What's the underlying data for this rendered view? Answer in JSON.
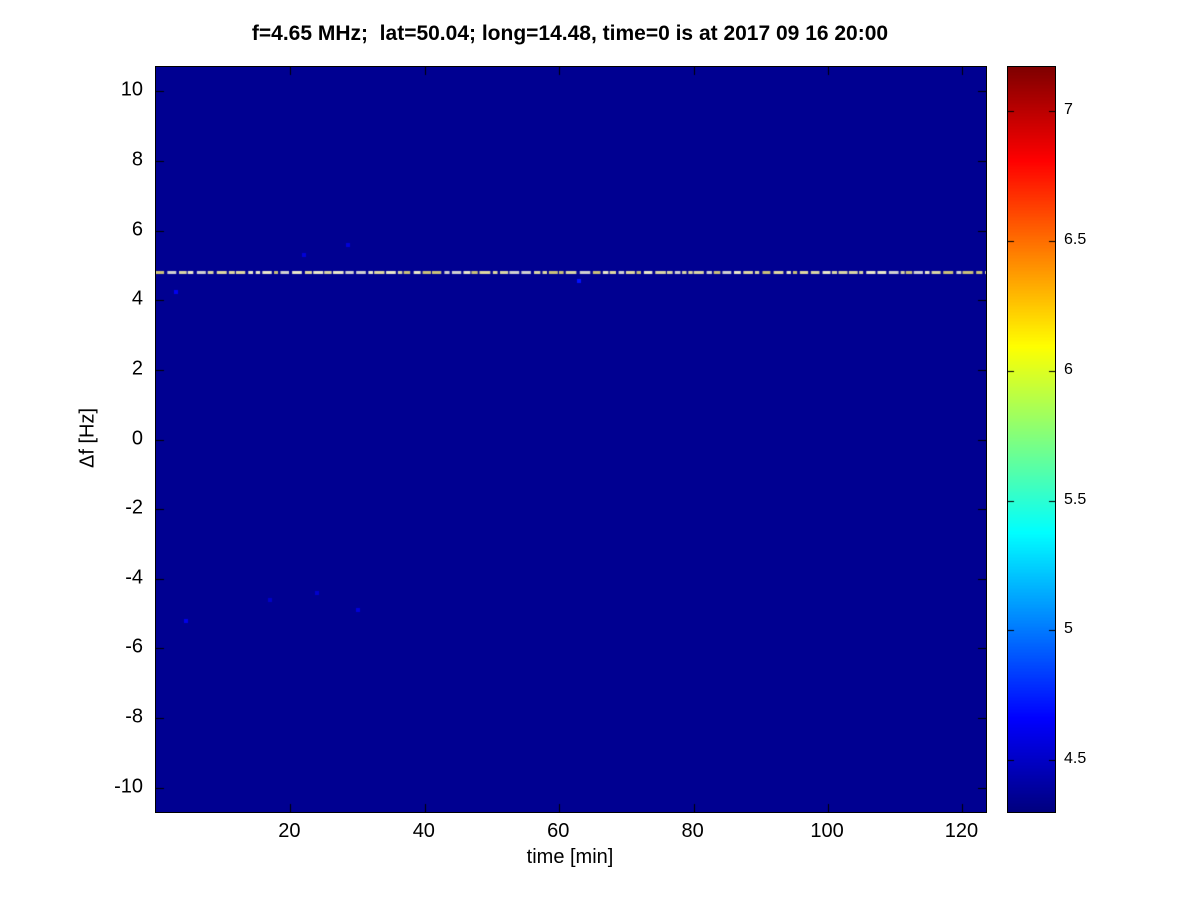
{
  "chart_data": {
    "type": "heatmap",
    "title": "f=4.65 MHz;  lat=50.04; long=14.48, time=0 is at 2017 09 16 20:00",
    "xlabel": "time [min]",
    "ylabel": "Δf [Hz]",
    "xlim": [
      0,
      123.5
    ],
    "ylim": [
      -10.7,
      10.7
    ],
    "xticks": [
      20,
      40,
      60,
      80,
      100,
      120
    ],
    "xtick_labels": [
      "20",
      "40",
      "60",
      "80",
      "100",
      "120"
    ],
    "yticks": [
      10,
      8,
      6,
      4,
      2,
      0,
      -2,
      -4,
      -6,
      -8,
      -10
    ],
    "ytick_labels": [
      "10",
      "8",
      "6",
      "4",
      "2",
      "0",
      "-2",
      "-4",
      "-6",
      "-8",
      "-10"
    ],
    "colormap": "jet",
    "background_value": 4.35,
    "signal_line": {
      "y_hz": 4.82,
      "x_start": 0,
      "x_end": 123.5,
      "thickness_px": 3,
      "description": "horizontal dashed pale-yellow carrier trace spanning full time range",
      "dash_colors": [
        "#d8d4a4",
        "#e9e7c9",
        "#c9c07a",
        "#cfcfcf",
        "#ded7a0"
      ]
    },
    "noise_points": [
      {
        "x": 3.0,
        "y": 4.25,
        "value": 4.62
      },
      {
        "x": 4.5,
        "y": -5.2,
        "value": 4.6
      },
      {
        "x": 22.0,
        "y": 5.3,
        "value": 4.55
      },
      {
        "x": 28.5,
        "y": 5.6,
        "value": 4.55
      },
      {
        "x": 24.0,
        "y": -4.4,
        "value": 4.52
      },
      {
        "x": 30.0,
        "y": -4.9,
        "value": 4.55
      },
      {
        "x": 17.0,
        "y": -4.6,
        "value": 4.5
      },
      {
        "x": 63.0,
        "y": 4.55,
        "value": 4.7
      }
    ],
    "colorbar": {
      "cmin": 4.3,
      "cmax": 7.17,
      "ticks": [
        7,
        6.5,
        6,
        5.5,
        5,
        4.5
      ],
      "tick_labels": [
        "7",
        "6.5",
        "6",
        "5.5",
        "5",
        "4.5"
      ],
      "position": "right"
    },
    "grid": false,
    "legend": null
  }
}
